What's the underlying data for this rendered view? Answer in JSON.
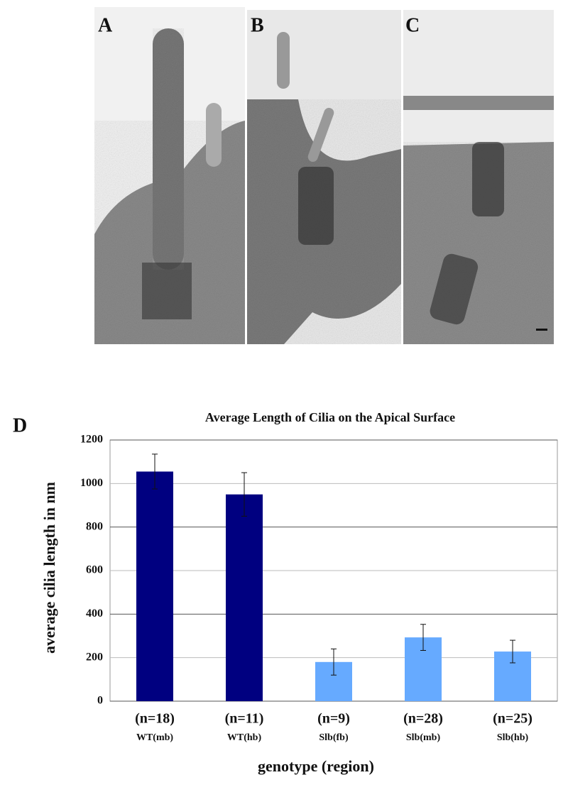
{
  "panels": [
    {
      "label": "A"
    },
    {
      "label": "B"
    },
    {
      "label": "C"
    }
  ],
  "chart_data": {
    "type": "bar",
    "panel_label": "D",
    "title": "Average Length of Cilia on the Apical Surface",
    "x_label": "genotype (region)",
    "y_label": "average cilia length in nm",
    "categories": [
      "(n=18)",
      "(n=11)",
      "(n=9)",
      "(n=28)",
      "(n=25)"
    ],
    "category_sublabels": [
      "WT(mb)",
      "WT(hb)",
      "Slb(fb)",
      "Slb(mb)",
      "Slb(hb)"
    ],
    "values": [
      1055,
      950,
      180,
      293,
      228
    ],
    "errors": [
      80,
      100,
      60,
      60,
      52
    ],
    "colors": [
      "#000080",
      "#000080",
      "#66aaff",
      "#66aaff",
      "#66aaff"
    ],
    "ylim": [
      0,
      1200
    ],
    "yticks": [
      0,
      200,
      400,
      600,
      800,
      1000,
      1200
    ],
    "grid": true
  }
}
